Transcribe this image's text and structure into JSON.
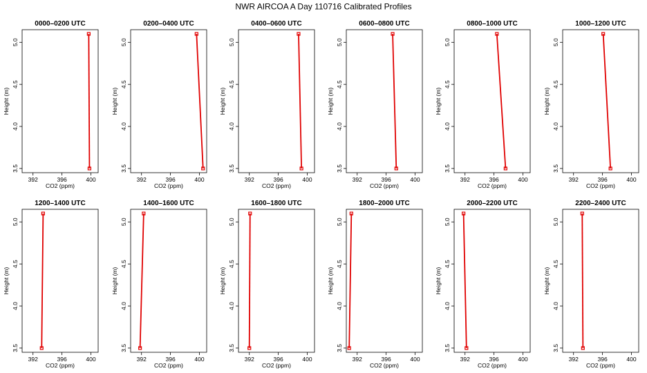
{
  "figure": {
    "title": "NWR AIRCOA A  Day 110716  Calibrated Profiles"
  },
  "chart_data": [
    {
      "type": "line",
      "title": "0000–0200 UTC",
      "xlabel": "CO2 (ppm)",
      "ylabel": "Height (m)",
      "xlim": [
        390.5,
        401.0
      ],
      "ylim": [
        3.45,
        5.15
      ],
      "xticks": [
        392,
        396,
        400
      ],
      "yticks": [
        3.5,
        4.0,
        4.5,
        5.0
      ],
      "x": [
        399.8,
        399.7
      ],
      "y": [
        3.5,
        5.1
      ],
      "color": "#e00000"
    },
    {
      "type": "line",
      "title": "0200–0400 UTC",
      "xlabel": "CO2 (ppm)",
      "ylabel": "Height (m)",
      "xlim": [
        390.5,
        401.0
      ],
      "ylim": [
        3.45,
        5.15
      ],
      "xticks": [
        392,
        396,
        400
      ],
      "yticks": [
        3.5,
        4.0,
        4.5,
        5.0
      ],
      "x": [
        400.5,
        399.6
      ],
      "y": [
        3.5,
        5.1
      ],
      "color": "#e00000"
    },
    {
      "type": "line",
      "title": "0400–0600 UTC",
      "xlabel": "CO2 (ppm)",
      "ylabel": "Height (m)",
      "xlim": [
        390.5,
        401.0
      ],
      "ylim": [
        3.45,
        5.15
      ],
      "xticks": [
        392,
        396,
        400
      ],
      "yticks": [
        3.5,
        4.0,
        4.5,
        5.0
      ],
      "x": [
        399.2,
        398.8
      ],
      "y": [
        3.5,
        5.1
      ],
      "color": "#e00000"
    },
    {
      "type": "line",
      "title": "0600–0800 UTC",
      "xlabel": "CO2 (ppm)",
      "ylabel": "Height (m)",
      "xlim": [
        390.5,
        401.0
      ],
      "ylim": [
        3.45,
        5.15
      ],
      "xticks": [
        392,
        396,
        400
      ],
      "yticks": [
        3.5,
        4.0,
        4.5,
        5.0
      ],
      "x": [
        397.4,
        396.9
      ],
      "y": [
        3.5,
        5.1
      ],
      "color": "#e00000"
    },
    {
      "type": "line",
      "title": "0800–1000 UTC",
      "xlabel": "CO2 (ppm)",
      "ylabel": "Height (m)",
      "xlim": [
        390.5,
        401.0
      ],
      "ylim": [
        3.45,
        5.15
      ],
      "xticks": [
        392,
        396,
        400
      ],
      "yticks": [
        3.5,
        4.0,
        4.5,
        5.0
      ],
      "x": [
        397.6,
        396.4
      ],
      "y": [
        3.5,
        5.1
      ],
      "color": "#e00000"
    },
    {
      "type": "line",
      "title": "1000–1200 UTC",
      "xlabel": "CO2 (ppm)",
      "ylabel": "Height (m)",
      "xlim": [
        390.5,
        401.0
      ],
      "ylim": [
        3.45,
        5.15
      ],
      "xticks": [
        392,
        396,
        400
      ],
      "yticks": [
        3.5,
        4.0,
        4.5,
        5.0
      ],
      "x": [
        397.1,
        396.1
      ],
      "y": [
        3.5,
        5.1
      ],
      "color": "#e00000"
    },
    {
      "type": "line",
      "title": "1200–1400 UTC",
      "xlabel": "CO2 (ppm)",
      "ylabel": "Height (m)",
      "xlim": [
        390.5,
        401.0
      ],
      "ylim": [
        3.45,
        5.15
      ],
      "xticks": [
        392,
        396,
        400
      ],
      "yticks": [
        3.5,
        4.0,
        4.5,
        5.0
      ],
      "x": [
        393.2,
        393.4
      ],
      "y": [
        3.5,
        5.1
      ],
      "color": "#e00000"
    },
    {
      "type": "line",
      "title": "1400–1600 UTC",
      "xlabel": "CO2 (ppm)",
      "ylabel": "Height (m)",
      "xlim": [
        390.5,
        401.0
      ],
      "ylim": [
        3.45,
        5.15
      ],
      "xticks": [
        392,
        396,
        400
      ],
      "yticks": [
        3.5,
        4.0,
        4.5,
        5.0
      ],
      "x": [
        391.8,
        392.3
      ],
      "y": [
        3.5,
        5.1
      ],
      "color": "#e00000"
    },
    {
      "type": "line",
      "title": "1600–1800 UTC",
      "xlabel": "CO2 (ppm)",
      "ylabel": "Height (m)",
      "xlim": [
        390.5,
        401.0
      ],
      "ylim": [
        3.45,
        5.15
      ],
      "xticks": [
        392,
        396,
        400
      ],
      "yticks": [
        3.5,
        4.0,
        4.5,
        5.0
      ],
      "x": [
        392.0,
        392.1
      ],
      "y": [
        3.5,
        5.1
      ],
      "color": "#e00000"
    },
    {
      "type": "line",
      "title": "1800–2000 UTC",
      "xlabel": "CO2 (ppm)",
      "ylabel": "Height (m)",
      "xlim": [
        390.5,
        401.0
      ],
      "ylim": [
        3.45,
        5.15
      ],
      "xticks": [
        392,
        396,
        400
      ],
      "yticks": [
        3.5,
        4.0,
        4.5,
        5.0
      ],
      "x": [
        390.9,
        391.2
      ],
      "y": [
        3.5,
        5.1
      ],
      "color": "#e00000"
    },
    {
      "type": "line",
      "title": "2000–2200 UTC",
      "xlabel": "CO2 (ppm)",
      "ylabel": "Height (m)",
      "xlim": [
        390.5,
        401.0
      ],
      "ylim": [
        3.45,
        5.15
      ],
      "xticks": [
        392,
        396,
        400
      ],
      "yticks": [
        3.5,
        4.0,
        4.5,
        5.0
      ],
      "x": [
        392.2,
        391.8
      ],
      "y": [
        3.5,
        5.1
      ],
      "color": "#e00000"
    },
    {
      "type": "line",
      "title": "2200–2400 UTC",
      "xlabel": "CO2 (ppm)",
      "ylabel": "Height (m)",
      "xlim": [
        390.5,
        401.0
      ],
      "ylim": [
        3.45,
        5.15
      ],
      "xticks": [
        392,
        396,
        400
      ],
      "yticks": [
        3.5,
        4.0,
        4.5,
        5.0
      ],
      "x": [
        393.3,
        393.2
      ],
      "y": [
        3.5,
        5.1
      ],
      "color": "#e00000"
    }
  ]
}
